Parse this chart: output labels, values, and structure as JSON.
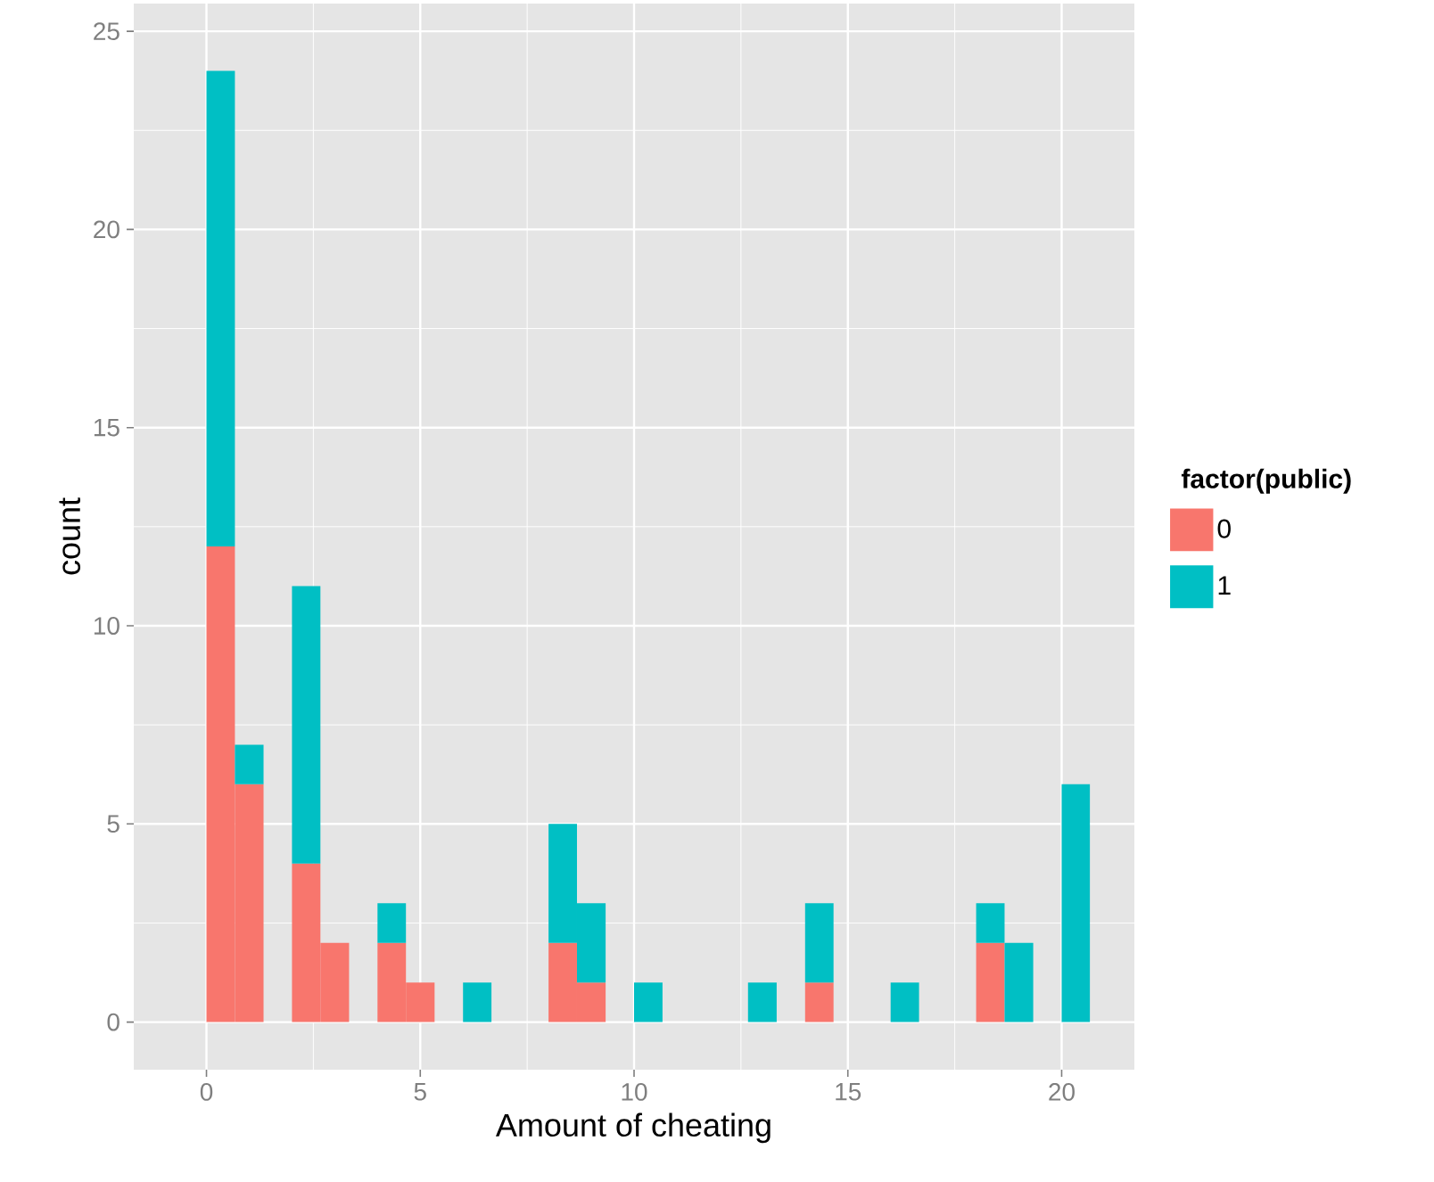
{
  "chart_data": {
    "type": "bar",
    "xlabel": "Amount of cheating",
    "ylabel": "count",
    "legend_title": "factor(public)",
    "stacked": true,
    "x": [
      -0.33,
      0.33,
      1,
      1.67,
      2.33,
      3,
      3.67,
      4.33,
      5,
      5.67,
      6.33,
      7,
      7.67,
      8.33,
      9,
      9.67,
      10.33,
      11,
      11.67,
      12.33,
      13,
      13.67,
      14.33,
      15,
      15.67,
      16.33,
      17,
      17.67,
      18.33,
      19,
      19.67,
      20.33
    ],
    "series": [
      {
        "name": "0",
        "color": "#f8766d",
        "values": [
          0,
          12,
          6,
          0,
          4,
          2,
          0,
          2,
          1,
          0,
          0,
          0,
          0,
          2,
          1,
          0,
          0,
          0,
          0,
          0,
          0,
          0,
          1,
          0,
          0,
          0,
          0,
          0,
          2,
          0,
          0,
          0
        ]
      },
      {
        "name": "1",
        "color": "#00bfc4",
        "values": [
          0,
          12,
          1,
          0,
          7,
          0,
          0,
          1,
          0,
          0,
          1,
          0,
          0,
          3,
          2,
          0,
          1,
          0,
          0,
          0,
          1,
          0,
          2,
          0,
          0,
          1,
          0,
          0,
          1,
          2,
          0,
          6
        ]
      }
    ],
    "xlim": [
      -1.7,
      21.7
    ],
    "ylim": [
      -1.2,
      25.7
    ],
    "xticks": [
      0,
      5,
      10,
      15,
      20
    ],
    "yticks": [
      0,
      5,
      10,
      15,
      20,
      25
    ],
    "grid": true,
    "legend": "right"
  }
}
